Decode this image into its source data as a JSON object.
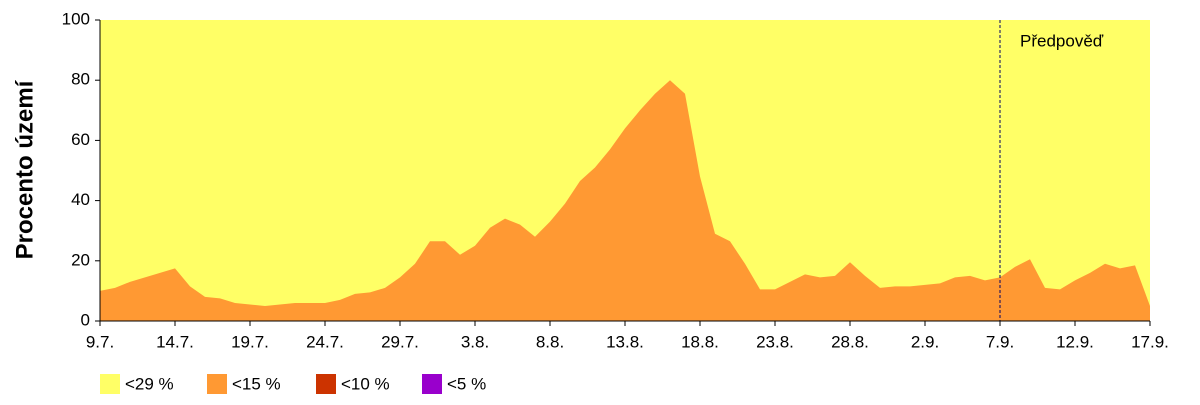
{
  "chart_data": {
    "type": "area",
    "y_label": "Procento území",
    "annotation": "Předpověď",
    "forecast_start": 60,
    "categories": [
      "9.7.",
      null,
      null,
      null,
      null,
      "14.7.",
      null,
      null,
      null,
      null,
      "19.7.",
      null,
      null,
      null,
      null,
      "24.7.",
      null,
      null,
      null,
      null,
      "29.7.",
      null,
      null,
      null,
      null,
      "3.8.",
      null,
      null,
      null,
      null,
      "8.8.",
      null,
      null,
      null,
      null,
      "13.8.",
      null,
      null,
      null,
      null,
      "18.8.",
      null,
      null,
      null,
      null,
      "23.8.",
      null,
      null,
      null,
      null,
      "28.8.",
      null,
      null,
      null,
      null,
      "2.9.",
      null,
      null,
      null,
      null,
      "7.9.",
      null,
      null,
      null,
      null,
      "12.9.",
      null,
      null,
      null,
      null,
      "17.9."
    ],
    "series": [
      {
        "name": "<29 %",
        "color": "#ffff66",
        "values": [
          100,
          100,
          100,
          100,
          100,
          100,
          100,
          100,
          100,
          100,
          100,
          100,
          100,
          100,
          100,
          100,
          100,
          100,
          100,
          100,
          100,
          100,
          100,
          100,
          100,
          100,
          100,
          100,
          100,
          100,
          100,
          100,
          100,
          100,
          100,
          100,
          100,
          100,
          100,
          100,
          100,
          100,
          100,
          100,
          100,
          100,
          100,
          100,
          100,
          100,
          100,
          100,
          100,
          100,
          100,
          100,
          100,
          100,
          100,
          100,
          100,
          100,
          100,
          100,
          100,
          100,
          100,
          100,
          100,
          100,
          100
        ]
      },
      {
        "name": "<15 %",
        "color": "#ff9933",
        "values": [
          10,
          11,
          13,
          14.5,
          16,
          17.5,
          11.5,
          8,
          7.5,
          6,
          5.5,
          5,
          5.5,
          6,
          6,
          6,
          7,
          9,
          9.5,
          11,
          14.5,
          19,
          26.5,
          26.5,
          22,
          25,
          31,
          34,
          32,
          28,
          33,
          39,
          46.5,
          51,
          57,
          64,
          70,
          75.5,
          80,
          75.5,
          48,
          29,
          26.5,
          19,
          10.5,
          10.5,
          13,
          15.5,
          14.5,
          15,
          19.5,
          15,
          11,
          11.5,
          11.5,
          12,
          12.5,
          14.5,
          15,
          13.5,
          14.5,
          18,
          20.5,
          11,
          10.5,
          13.5,
          16,
          19,
          17.5,
          18.5,
          5
        ]
      },
      {
        "name": "<10 %",
        "color": "#cc3300",
        "values": [
          0,
          0,
          0,
          0,
          0,
          0,
          0,
          0,
          0,
          0,
          0,
          0,
          0,
          0,
          0,
          0,
          0,
          0,
          0,
          0,
          0,
          0,
          0,
          0,
          0,
          0,
          0,
          0,
          0,
          0,
          0,
          0,
          0,
          0,
          0,
          0,
          0,
          0,
          0,
          0,
          0,
          0,
          0,
          0,
          0,
          0,
          0,
          0,
          0,
          0,
          0,
          0,
          0,
          0,
          0,
          0,
          0,
          0,
          0,
          0,
          0,
          0,
          0,
          0,
          0,
          0,
          0,
          0,
          0,
          0,
          0
        ]
      },
      {
        "name": "<5 %",
        "color": "#9900cc",
        "values": [
          0,
          0,
          0,
          0,
          0,
          0,
          0,
          0,
          0,
          0,
          0,
          0,
          0,
          0,
          0,
          0,
          0,
          0,
          0,
          0,
          0,
          0,
          0,
          0,
          0,
          0,
          0,
          0,
          0,
          0,
          0,
          0,
          0,
          0,
          0,
          0,
          0,
          0,
          0,
          0,
          0,
          0,
          0,
          0,
          0,
          0,
          0,
          0,
          0,
          0,
          0,
          0,
          0,
          0,
          0,
          0,
          0,
          0,
          0,
          0,
          0,
          0,
          0,
          0,
          0,
          0,
          0,
          0,
          0,
          0,
          0
        ]
      }
    ],
    "ylim": [
      0,
      100
    ],
    "yticks": [
      0,
      20,
      40,
      60,
      80,
      100
    ]
  }
}
